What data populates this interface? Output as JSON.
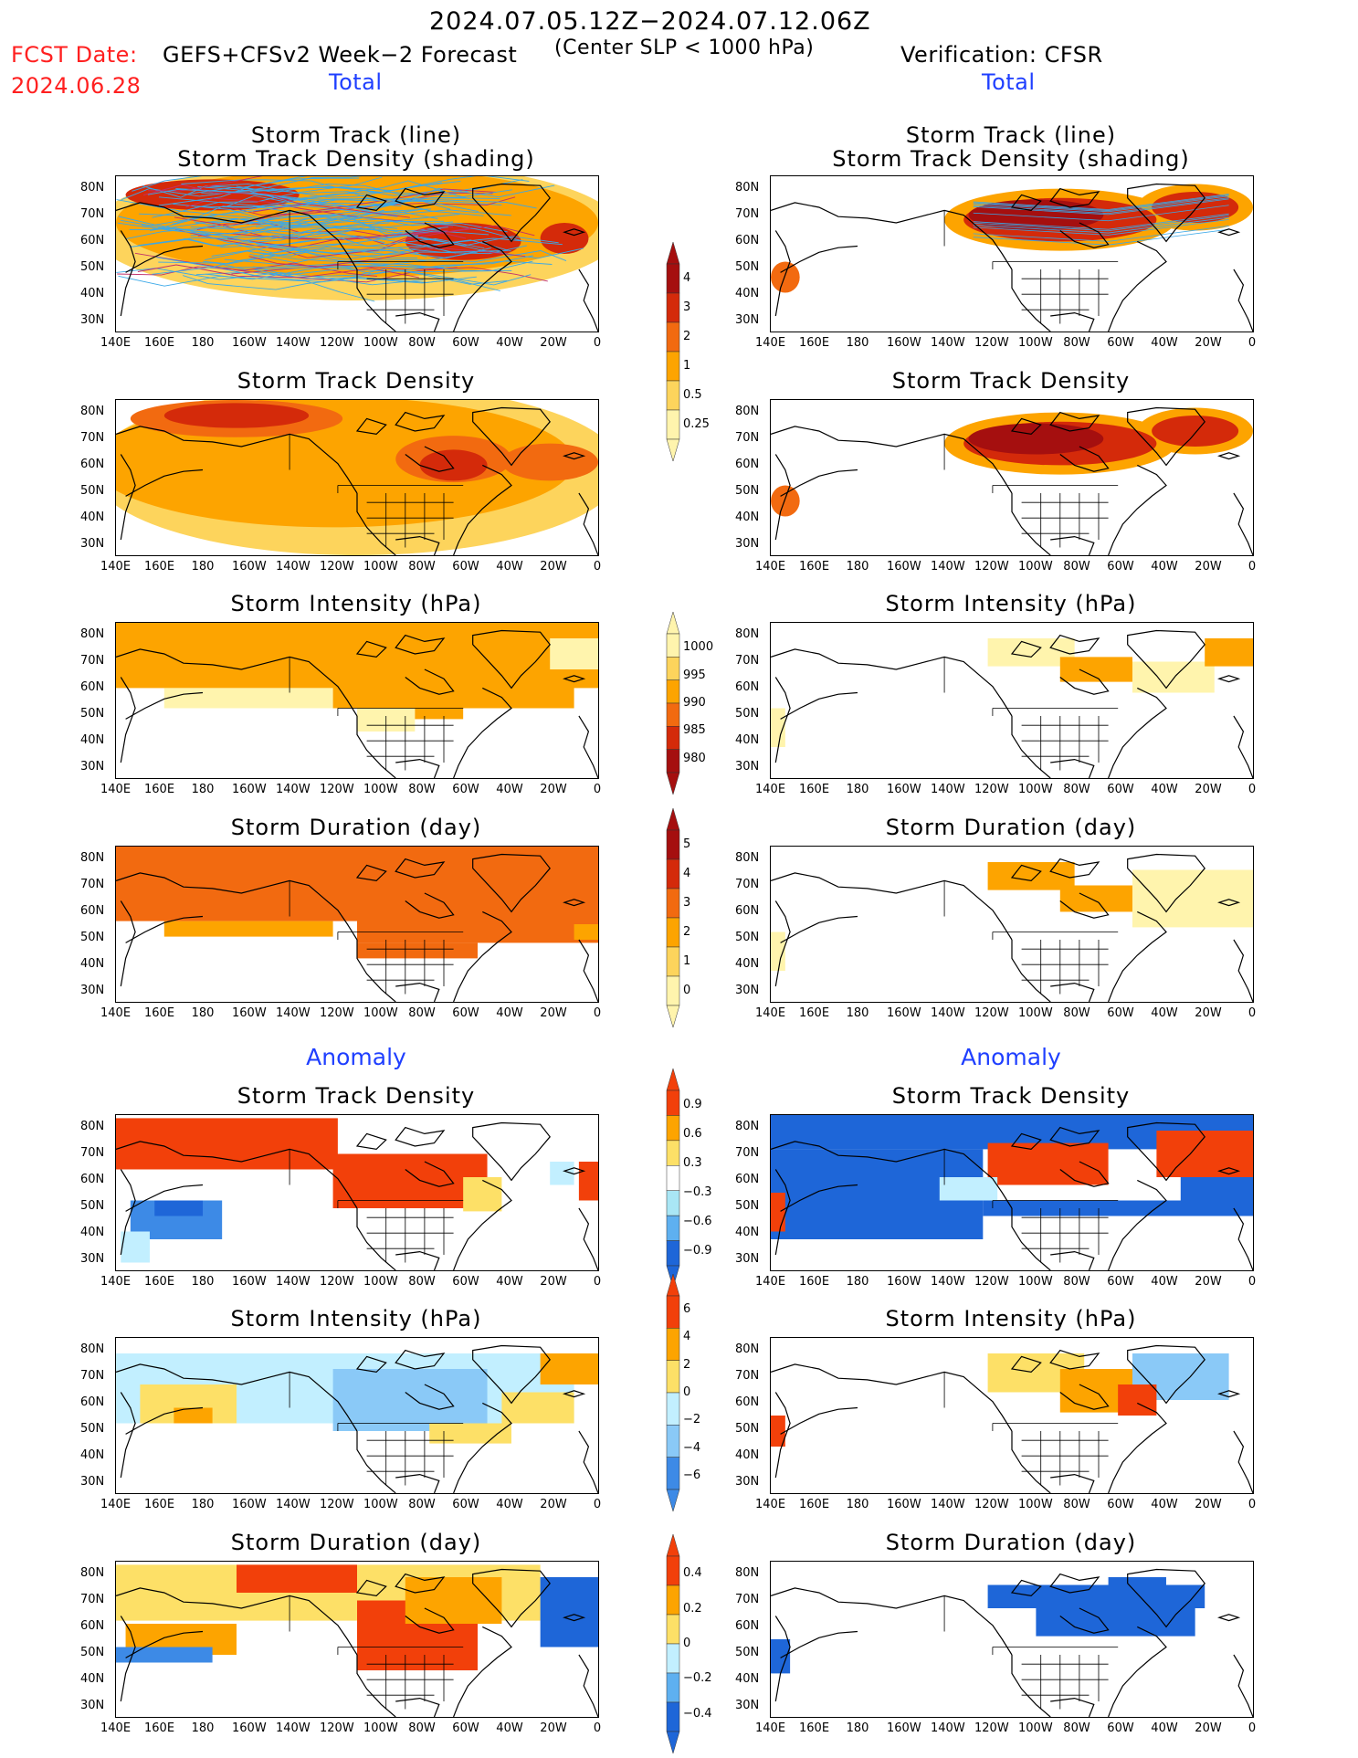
{
  "header": {
    "date_range": "2024.07.05.12Z−2024.07.12.06Z",
    "fcst_label": "FCST Date:",
    "fcst_date": "2024.06.28",
    "model_label": "GEFS+CFSv2 Week−2 Forecast",
    "criterion": "(Center SLP < 1000 hPa)",
    "verification": "Verification: CFSR"
  },
  "sections": {
    "total_left": "Total",
    "total_right": "Total",
    "anomaly_left": "Anomaly",
    "anomaly_right": "Anomaly"
  },
  "panel_titles": {
    "track_line": "Storm Track (line)",
    "track_shading": "Storm Track Density (shading)",
    "density": "Storm Track Density",
    "intensity": "Storm Intensity (hPa)",
    "duration": "Storm Duration (day)"
  },
  "axes": {
    "lat_labels": [
      "80N",
      "70N",
      "60N",
      "50N",
      "40N",
      "30N"
    ],
    "lon_labels": [
      "140E",
      "160E",
      "180",
      "160W",
      "140W",
      "120W",
      "100W",
      "80W",
      "60W",
      "40W",
      "20W",
      "0"
    ]
  },
  "colorbars": {
    "density_total": {
      "labels": [
        "4",
        "3",
        "2",
        "1",
        "0.5",
        "0.25"
      ],
      "colors": [
        "#a50f0f",
        "#d42a0a",
        "#f26a10",
        "#fda400",
        "#fdd45c",
        "#fff4ad"
      ]
    },
    "intensity_total": {
      "labels": [
        "1000",
        "995",
        "990",
        "985",
        "980"
      ],
      "colors": [
        "#fff4ad",
        "#fdd45c",
        "#fda400",
        "#f26a10",
        "#d42a0a",
        "#a50f0f"
      ]
    },
    "duration_total": {
      "labels": [
        "5",
        "4",
        "3",
        "2",
        "1",
        "0"
      ],
      "colors": [
        "#a50f0f",
        "#d42a0a",
        "#f26a10",
        "#fda400",
        "#fdd45c",
        "#fff4ad"
      ]
    },
    "density_anom": {
      "labels": [
        "0.9",
        "0.6",
        "0.3",
        "−0.3",
        "−0.6",
        "−0.9"
      ],
      "colors": [
        "#f2400a",
        "#fda400",
        "#fde067",
        "#ffffff",
        "#a9e6f5",
        "#5eb0f0",
        "#1e66d8"
      ]
    },
    "intensity_anom": {
      "labels": [
        "6",
        "4",
        "2",
        "0",
        "−2",
        "−4",
        "−6"
      ],
      "colors": [
        "#f2400a",
        "#fda400",
        "#fde067",
        "#c2efff",
        "#8ac9f7",
        "#3d8ae6"
      ]
    },
    "duration_anom": {
      "labels": [
        "0.4",
        "0.2",
        "0",
        "−0.2",
        "−0.4"
      ],
      "colors": [
        "#f2400a",
        "#fda400",
        "#fde067",
        "#c2efff",
        "#5eb0f0",
        "#1e66d8"
      ]
    }
  }
}
